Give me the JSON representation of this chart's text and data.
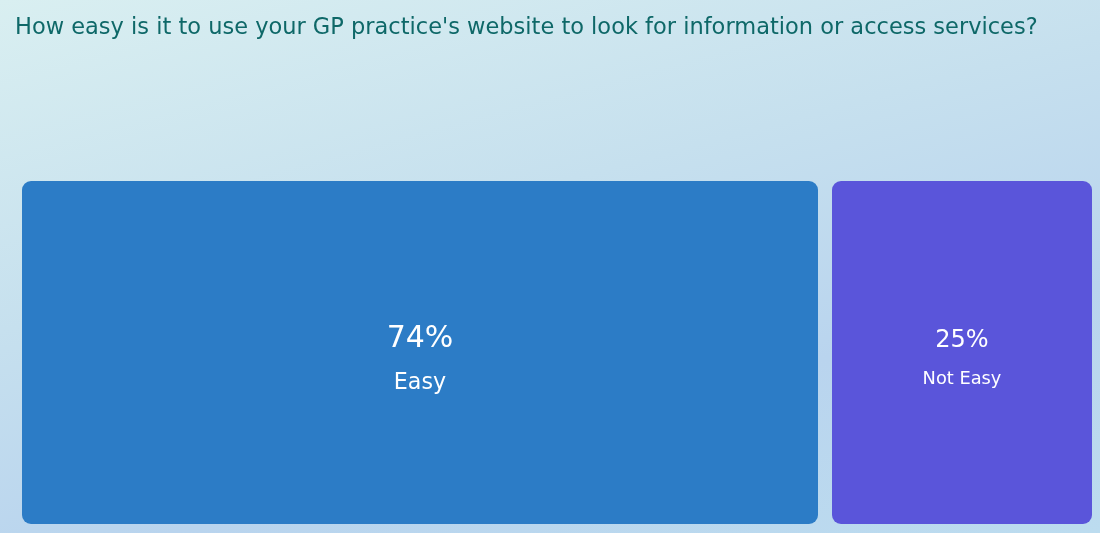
{
  "chart_data": {
    "type": "other",
    "title": "How easy is it to use your GP practice's website to look for information or access services?",
    "categories": [
      "Easy",
      "Not Easy"
    ],
    "values": [
      74,
      25
    ],
    "value_labels": [
      "74%",
      "25%"
    ],
    "colors": [
      "#2c7cc6",
      "#5a55da"
    ]
  }
}
